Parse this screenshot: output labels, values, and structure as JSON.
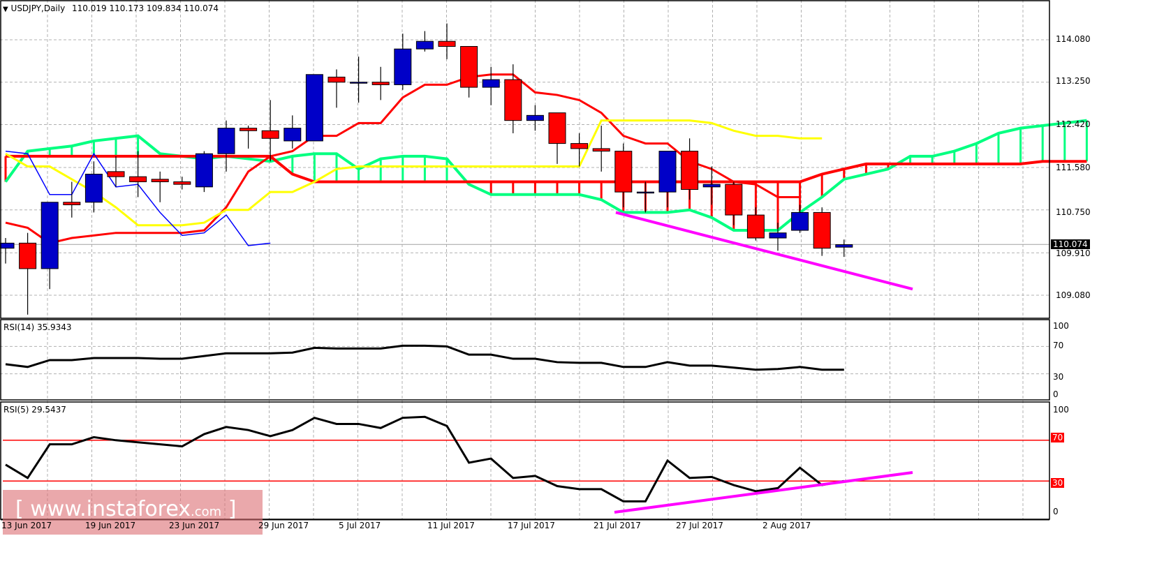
{
  "header": {
    "symbol": "USDJPY",
    "timeframe": "Daily",
    "title": "USDJPY,Daily",
    "ohlc": "110.019 110.173 109.834 110.074",
    "collapse_glyph": "▼"
  },
  "price_axis": {
    "labels": [
      "114.080",
      "113.250",
      "112.420",
      "111.580",
      "110.750",
      "109.910",
      "109.080"
    ],
    "current_price": "110.074"
  },
  "rsi14": {
    "label": "RSI(14) 35.9343",
    "axis": [
      "100",
      "70",
      "30",
      "0"
    ]
  },
  "rsi5": {
    "label": "RSI(5) 29.5437",
    "axis_top": "100",
    "axis_bottom": "0",
    "level_high": "70",
    "level_low": "30"
  },
  "date_axis": [
    "13 Jun 2017",
    "19 Jun 2017",
    "23 Jun 2017",
    "29 Jun 2017",
    "5 Jul 2017",
    "11 Jul 2017",
    "17 Jul 2017",
    "21 Jul 2017",
    "27 Jul 2017",
    "2 Aug 2017"
  ],
  "watermark": {
    "open": "[",
    "main": " www.instaforex",
    "suffix": ".com",
    "close": " ]"
  },
  "colors": {
    "bull": "#0000c8",
    "bear": "#ff0000",
    "tenkan": "#ff0000",
    "kijun": "#0000ff",
    "chikou": "#ffff00",
    "senkou_a": "#00ff80",
    "senkou_b": "#ff0000",
    "trendline": "#ff00ff",
    "rsi": "#000000",
    "grid": "#b0b0b0"
  },
  "chart_data": [
    {
      "type": "candlestick",
      "title": "USDJPY,Daily",
      "ylim": [
        108.6,
        114.8
      ],
      "yticks": [
        114.08,
        113.25,
        112.42,
        111.58,
        110.75,
        109.91,
        109.08
      ],
      "indicators": [
        "Ichimoku Kinko Hyo (Tenkan, Kijun, Chikou, Senkou Span A/B cloud)"
      ],
      "candles": [
        {
          "o": 110.0,
          "h": 110.2,
          "c": 110.1,
          "l": 109.7
        },
        {
          "o": 110.1,
          "h": 110.3,
          "c": 109.6,
          "l": 108.7
        },
        {
          "o": 109.6,
          "h": 110.9,
          "c": 110.9,
          "l": 109.2
        },
        {
          "o": 110.9,
          "h": 111.3,
          "c": 110.85,
          "l": 110.6
        },
        {
          "o": 110.9,
          "h": 111.7,
          "c": 111.45,
          "l": 110.7
        },
        {
          "o": 111.5,
          "h": 111.8,
          "c": 111.4,
          "l": 111.2
        },
        {
          "o": 111.4,
          "h": 111.9,
          "c": 111.3,
          "l": 111.0
        },
        {
          "o": 111.35,
          "h": 111.5,
          "c": 111.3,
          "l": 110.9
        },
        {
          "o": 111.3,
          "h": 111.4,
          "c": 111.25,
          "l": 111.15
        },
        {
          "o": 111.2,
          "h": 111.9,
          "c": 111.85,
          "l": 111.1
        },
        {
          "o": 111.85,
          "h": 112.5,
          "c": 112.35,
          "l": 111.5
        },
        {
          "o": 112.35,
          "h": 112.4,
          "c": 112.3,
          "l": 111.95
        },
        {
          "o": 112.3,
          "h": 112.9,
          "c": 112.15,
          "l": 111.7
        },
        {
          "o": 112.1,
          "h": 112.6,
          "c": 112.35,
          "l": 111.95
        },
        {
          "o": 112.1,
          "h": 113.4,
          "c": 113.4,
          "l": 112.1
        },
        {
          "o": 113.35,
          "h": 113.5,
          "c": 113.25,
          "l": 112.75
        },
        {
          "o": 113.25,
          "h": 113.75,
          "c": 113.25,
          "l": 112.85
        },
        {
          "o": 113.25,
          "h": 113.55,
          "c": 113.2,
          "l": 112.9
        },
        {
          "o": 113.2,
          "h": 114.2,
          "c": 113.9,
          "l": 113.1
        },
        {
          "o": 113.9,
          "h": 114.25,
          "c": 114.05,
          "l": 113.85
        },
        {
          "o": 114.05,
          "h": 114.4,
          "c": 113.95,
          "l": 113.7
        },
        {
          "o": 113.95,
          "h": 113.95,
          "c": 113.15,
          "l": 112.95
        },
        {
          "o": 113.15,
          "h": 113.55,
          "c": 113.3,
          "l": 112.8
        },
        {
          "o": 113.3,
          "h": 113.6,
          "c": 112.5,
          "l": 112.25
        },
        {
          "o": 112.5,
          "h": 112.8,
          "c": 112.6,
          "l": 112.3
        },
        {
          "o": 112.65,
          "h": 112.65,
          "c": 112.05,
          "l": 111.65
        },
        {
          "o": 112.05,
          "h": 112.25,
          "c": 111.95,
          "l": 111.6
        },
        {
          "o": 111.95,
          "h": 112.4,
          "c": 111.9,
          "l": 111.5
        },
        {
          "o": 111.9,
          "h": 112.05,
          "c": 111.1,
          "l": 110.8
        },
        {
          "o": 111.1,
          "h": 111.3,
          "c": 111.1,
          "l": 110.7
        },
        {
          "o": 111.1,
          "h": 111.9,
          "c": 111.9,
          "l": 110.8
        },
        {
          "o": 111.9,
          "h": 112.15,
          "c": 111.15,
          "l": 110.95
        },
        {
          "o": 111.2,
          "h": 111.6,
          "c": 111.25,
          "l": 110.85
        },
        {
          "o": 111.25,
          "h": 111.3,
          "c": 110.65,
          "l": 110.45
        },
        {
          "o": 110.65,
          "h": 110.8,
          "c": 110.2,
          "l": 110.15
        },
        {
          "o": 110.2,
          "h": 110.5,
          "c": 110.3,
          "l": 109.95
        },
        {
          "o": 110.35,
          "h": 110.85,
          "c": 110.7,
          "l": 110.3
        },
        {
          "o": 110.7,
          "h": 110.8,
          "c": 110.0,
          "l": 109.85
        },
        {
          "o": 110.02,
          "h": 110.17,
          "c": 110.07,
          "l": 109.83
        }
      ]
    },
    {
      "type": "line",
      "title": "RSI(14) 35.9343",
      "ylim": [
        0,
        100
      ],
      "yticks": [
        0,
        30,
        70,
        100
      ],
      "values": [
        44,
        40,
        50,
        50,
        53,
        53,
        53,
        52,
        52,
        56,
        60,
        60,
        60,
        61,
        68,
        67,
        67,
        67,
        71,
        71,
        70,
        58,
        58,
        52,
        52,
        47,
        46,
        46,
        40,
        40,
        47,
        42,
        42,
        39,
        36,
        37,
        40,
        36,
        36
      ]
    },
    {
      "type": "line",
      "title": "RSI(5) 29.5437",
      "ylim": [
        0,
        100
      ],
      "yticks": [
        0,
        30,
        70,
        100
      ],
      "levels": [
        70,
        30
      ],
      "values": [
        46,
        33,
        66,
        66,
        73,
        70,
        68,
        66,
        64,
        76,
        83,
        80,
        74,
        80,
        92,
        86,
        86,
        82,
        92,
        93,
        84,
        48,
        52,
        33,
        35,
        25,
        22,
        22,
        10,
        10,
        50,
        33,
        34,
        26,
        20,
        23,
        43,
        26,
        30
      ]
    }
  ]
}
